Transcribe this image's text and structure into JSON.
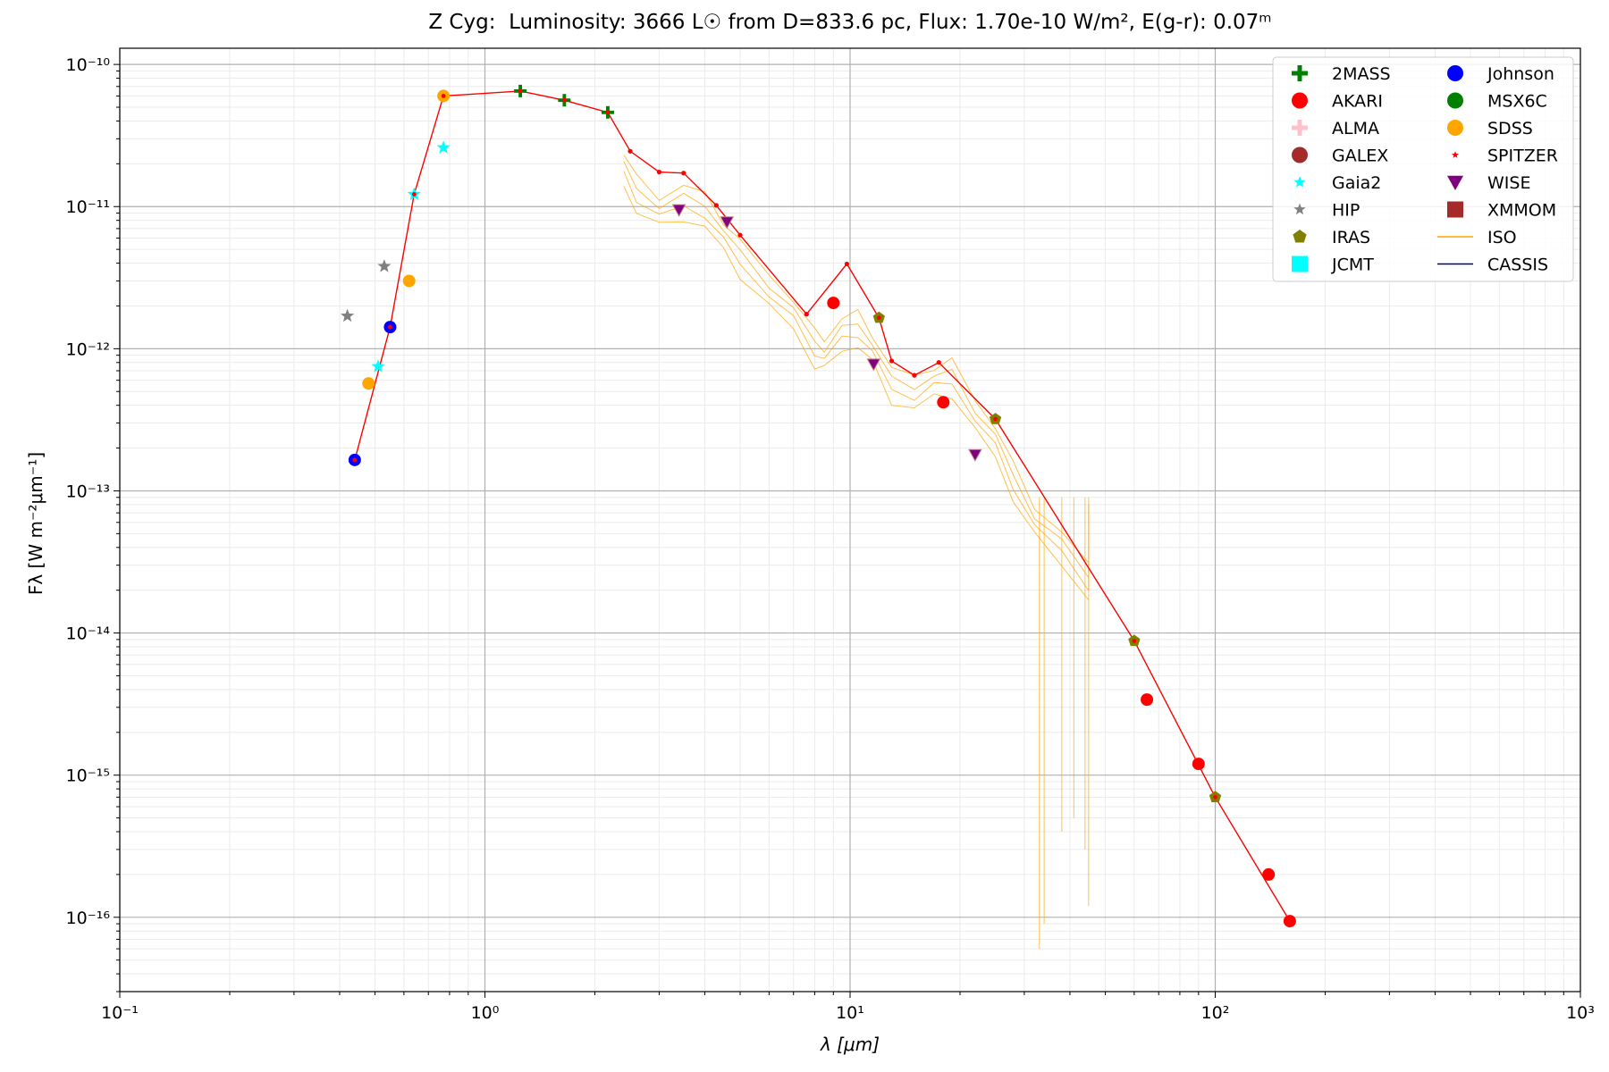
{
  "chart_data": {
    "type": "scatter",
    "title": "Z Cyg:  Luminosity: 3666 L☉ from D=833.6 pc, Flux: 1.70e-10 W/m², E(g-r): 0.07ᵐ",
    "title_parts": {
      "star": "Z Cyg:",
      "luminosity": "Luminosity: 3666 L☉",
      "distance": "from D=833.6 pc,",
      "flux": "Flux: 1.70e-10 W/m²,",
      "reddening": "E(g-r): 0.07ᵐ"
    },
    "xlabel": "λ [μm]",
    "ylabel": "Fλ [W m⁻²μm⁻¹]",
    "xscale": "log",
    "yscale": "log",
    "xlim": [
      0.1,
      1000
    ],
    "ylim": [
      3e-17,
      1.3e-10
    ],
    "grid": true,
    "legend_position": "top-right",
    "x_ticks": [
      "10⁻¹",
      "10⁰",
      "10¹",
      "10²",
      "10³"
    ],
    "y_ticks": [
      "10⁻¹⁰",
      "10⁻¹¹",
      "10⁻¹²",
      "10⁻¹³",
      "10⁻¹⁴",
      "10⁻¹⁵",
      "10⁻¹⁶"
    ],
    "model_line": {
      "color": "#ff0000",
      "points": [
        [
          0.44,
          1.65e-13
        ],
        [
          0.55,
          1.42e-12
        ],
        [
          0.64,
          1.22e-11
        ],
        [
          0.77,
          6e-11
        ],
        [
          1.25,
          6.5e-11
        ],
        [
          1.65,
          5.6e-11
        ],
        [
          2.17,
          4.6e-11
        ],
        [
          2.5,
          2.45e-11
        ],
        [
          3.0,
          1.75e-11
        ],
        [
          3.5,
          1.72e-11
        ],
        [
          4.3,
          1.02e-11
        ],
        [
          5.0,
          6.3e-12
        ],
        [
          7.6,
          1.75e-12
        ],
        [
          9.8,
          3.95e-12
        ],
        [
          12.0,
          1.65e-12
        ],
        [
          13.0,
          8.2e-13
        ],
        [
          15.0,
          6.5e-13
        ],
        [
          17.5,
          8e-13
        ],
        [
          25.0,
          3.2e-13
        ],
        [
          60.0,
          8.8e-15
        ],
        [
          100.0,
          7e-16
        ],
        [
          160.0,
          9.4e-17
        ]
      ]
    },
    "series": [
      {
        "name": "2MASS",
        "color": "#008000",
        "marker": "plus",
        "points": [
          [
            1.25,
            6.5e-11
          ],
          [
            1.65,
            5.6e-11
          ],
          [
            2.17,
            4.6e-11
          ]
        ]
      },
      {
        "name": "AKARI",
        "color": "#ff0000",
        "marker": "circle",
        "points": [
          [
            9.0,
            2.1e-12
          ],
          [
            18.0,
            4.2e-13
          ],
          [
            65.0,
            3.4e-15
          ],
          [
            90.0,
            1.2e-15
          ],
          [
            140.0,
            2e-16
          ],
          [
            160.0,
            9.4e-17
          ]
        ]
      },
      {
        "name": "ALMA",
        "color": "#ffc0cb",
        "marker": "plus",
        "points": []
      },
      {
        "name": "GALEX",
        "color": "#a52a2a",
        "marker": "circle",
        "points": []
      },
      {
        "name": "Gaia2",
        "color": "#00ffff",
        "marker": "star",
        "points": [
          [
            0.51,
            7.5e-13
          ],
          [
            0.64,
            1.22e-11
          ],
          [
            0.77,
            2.6e-11
          ]
        ]
      },
      {
        "name": "HIP",
        "color": "#808080",
        "marker": "star",
        "points": [
          [
            0.42,
            1.7e-12
          ],
          [
            0.53,
            3.8e-12
          ]
        ]
      },
      {
        "name": "IRAS",
        "color": "#808000",
        "marker": "pentagon",
        "points": [
          [
            12.0,
            1.65e-12
          ],
          [
            25.0,
            3.2e-13
          ],
          [
            60.0,
            8.8e-15
          ],
          [
            100.0,
            7e-16
          ]
        ]
      },
      {
        "name": "JCMT",
        "color": "#00ffff",
        "marker": "square",
        "points": []
      },
      {
        "name": "Johnson",
        "color": "#0000ff",
        "marker": "circle",
        "points": [
          [
            0.44,
            1.65e-13
          ],
          [
            0.55,
            1.42e-12
          ]
        ]
      },
      {
        "name": "MSX6C",
        "color": "#008000",
        "marker": "circle",
        "points": []
      },
      {
        "name": "SDSS",
        "color": "#ffa500",
        "marker": "circle",
        "points": [
          [
            0.48,
            5.7e-13
          ],
          [
            0.62,
            3e-12
          ],
          [
            0.77,
            6e-11
          ]
        ]
      },
      {
        "name": "SPITZER",
        "color": "#ff0000",
        "marker": "smallstar",
        "points": []
      },
      {
        "name": "WISE",
        "color": "#800080",
        "marker": "triangle-down",
        "points": [
          [
            3.4,
            9.5e-12
          ],
          [
            4.6,
            7.8e-12
          ],
          [
            11.6,
            7.8e-13
          ],
          [
            22.0,
            1.8e-13
          ]
        ]
      },
      {
        "name": "XMMOM",
        "color": "#a52a2a",
        "marker": "square",
        "points": []
      },
      {
        "name": "ISO",
        "color": "#ffa500",
        "marker": "line",
        "points": []
      },
      {
        "name": "CASSIS",
        "color": "#00008b",
        "marker": "line",
        "points": []
      }
    ],
    "iso_spectra": {
      "color": "#ffa500",
      "scales": [
        1.0,
        0.85,
        0.72,
        0.6
      ],
      "base": [
        [
          2.4,
          2.3e-11
        ],
        [
          2.6,
          1.6e-11
        ],
        [
          3.0,
          1.2e-11
        ],
        [
          3.5,
          1.35e-11
        ],
        [
          4.0,
          1.25e-11
        ],
        [
          4.5,
          8e-12
        ],
        [
          5.0,
          5.5e-12
        ],
        [
          6.0,
          3.4e-12
        ],
        [
          7.0,
          2.2e-12
        ],
        [
          8.0,
          1.3e-12
        ],
        [
          8.5,
          1.2e-12
        ],
        [
          9.5,
          1.6e-12
        ],
        [
          10.5,
          1.8e-12
        ],
        [
          11.5,
          1.3e-12
        ],
        [
          13.0,
          7e-13
        ],
        [
          15.0,
          6.5e-13
        ],
        [
          17.0,
          7.5e-13
        ],
        [
          19.0,
          8e-13
        ],
        [
          22.0,
          4.5e-13
        ],
        [
          25.0,
          2.8e-13
        ],
        [
          28.0,
          1.5e-13
        ],
        [
          32.0,
          8e-14
        ],
        [
          38.0,
          5e-14
        ],
        [
          45.0,
          3e-14
        ]
      ],
      "dips": [
        [
          33.0,
          6e-17
        ],
        [
          34.0,
          9e-17
        ],
        [
          38.0,
          4e-16
        ],
        [
          41.0,
          5e-16
        ],
        [
          44.0,
          3e-16
        ],
        [
          45.0,
          1.2e-16
        ]
      ],
      "spike": [
        45.0,
        8e-14
      ]
    }
  }
}
